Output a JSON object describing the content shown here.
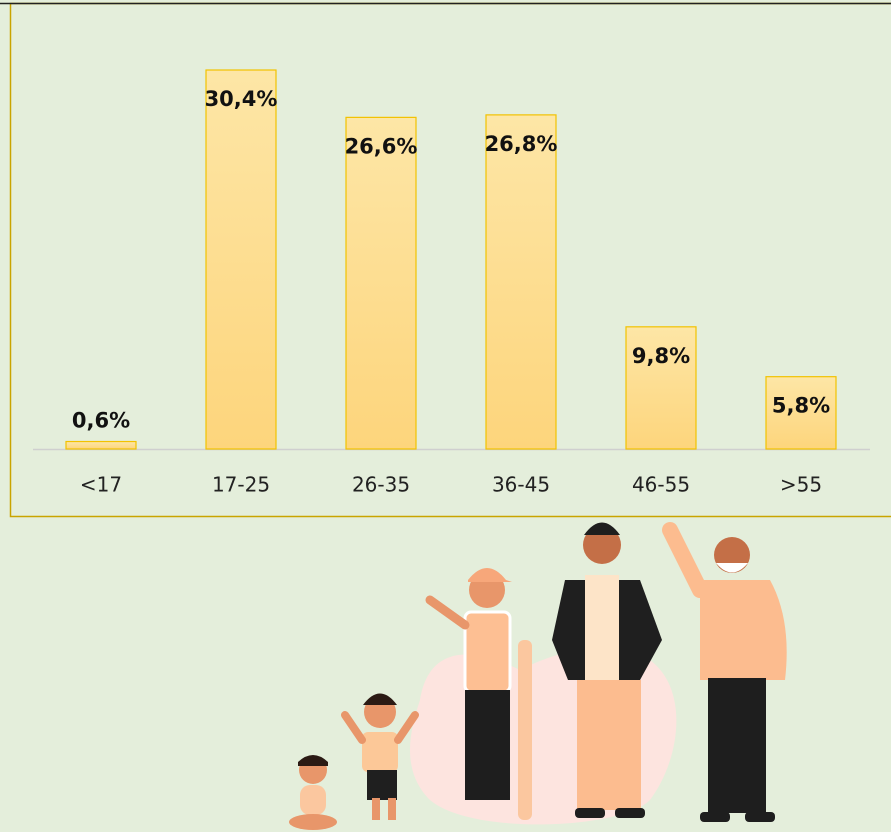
{
  "chart_data": {
    "type": "bar",
    "categories": [
      "<17",
      "17-25",
      "26-35",
      "36-45",
      "46-55",
      ">55"
    ],
    "values": [
      0.6,
      30.4,
      26.6,
      26.8,
      9.8,
      5.8
    ],
    "value_labels": [
      "0,6%",
      "30,4%",
      "26,6%",
      "26,8%",
      "9,8%",
      "5,8%"
    ],
    "color": "#fdd98a"
  }
}
